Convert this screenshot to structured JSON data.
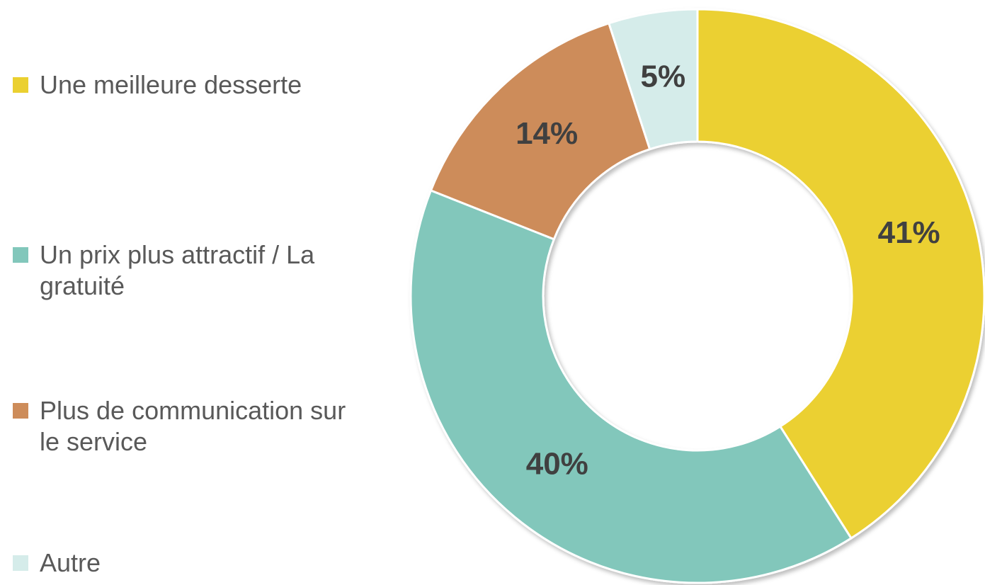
{
  "chart_data": {
    "type": "donut",
    "series": [
      {
        "name": "Une meilleure desserte",
        "color": "#ebd030",
        "value": 41,
        "value_label": "41%"
      },
      {
        "name": "Un prix plus attractif / La gratuité",
        "color": "#82c7bb",
        "value": 40,
        "value_label": "40%"
      },
      {
        "name": "Plus de communication sur le service",
        "color": "#cd8c5a",
        "value": 14,
        "value_label": "14%"
      },
      {
        "name": "Autre",
        "color": "#d5ecea",
        "value": 5,
        "value_label": "5%"
      }
    ],
    "legend": "left"
  }
}
